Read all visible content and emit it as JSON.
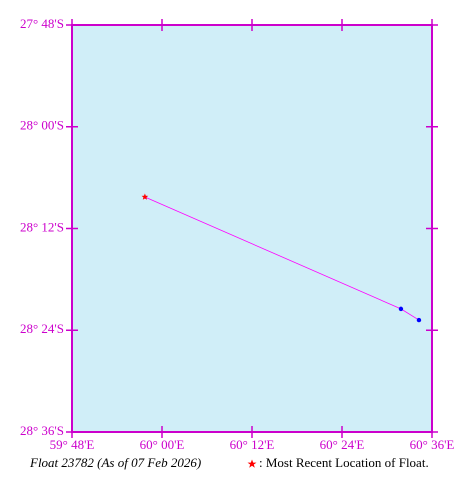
{
  "chart_data": {
    "type": "trajectory",
    "title": "Float 23782 (As of 07 Feb 2026)",
    "legend": ": Most Recent Location of Float.",
    "x": [
      60.571,
      60.531,
      59.962
    ],
    "values": [
      -28.38,
      -28.358,
      -28.138
    ],
    "point_colors": [
      "#0000ff",
      "#0000ff",
      "#ff0000"
    ],
    "line_color": "#ff00ff",
    "axis_color": "#cc00cc",
    "background": "#d0eef8",
    "xlim": [
      59.8,
      60.6
    ],
    "ylim": [
      -27.8,
      -28.6
    ],
    "xticks": [
      {
        "value": 59.8,
        "label": "59° 48'E"
      },
      {
        "value": 60.0,
        "label": "60° 00'E"
      },
      {
        "value": 60.2,
        "label": "60° 12'E"
      },
      {
        "value": 60.4,
        "label": "60° 24'E"
      },
      {
        "value": 60.6,
        "label": "60° 36'E"
      }
    ],
    "yticks": [
      {
        "value": -27.8,
        "label": "27° 48'S"
      },
      {
        "value": -28.0,
        "label": "28° 00'S"
      },
      {
        "value": -28.2,
        "label": "28° 12'S"
      },
      {
        "value": -28.4,
        "label": "28° 24'S"
      },
      {
        "value": -28.6,
        "label": "28° 36'S"
      }
    ]
  }
}
